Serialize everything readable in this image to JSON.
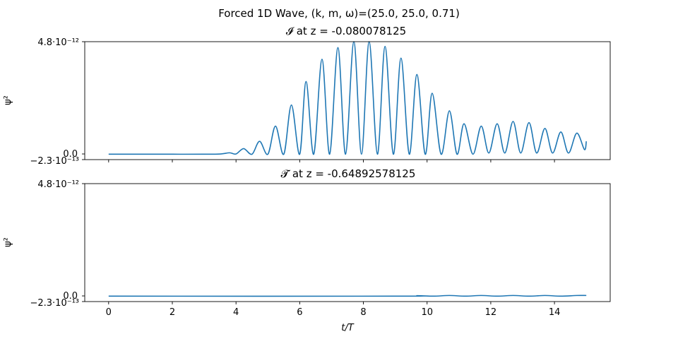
{
  "chart_data": {
    "type": "line",
    "title": "Forced 1D Wave, (k, m, ω)=(25.0, 25.0, 0.71)",
    "xlabel": "t/T",
    "line_color": "#1f77b4",
    "panels": [
      {
        "title": "𝓘 at z = -0.080078125",
        "ylabel": "ψ²",
        "ylim": [
          -2.3e-13,
          4.8e-12
        ],
        "ytick_labels": [
          "4.8·10⁻¹²",
          "0.0",
          "−2.3·10⁻¹³"
        ],
        "xlim": [
          -0.75,
          15.75
        ],
        "x": [
          0,
          1,
          2,
          3,
          3.5,
          3.8,
          4.0,
          4.24,
          4.5,
          4.74,
          5.0,
          5.24,
          5.5,
          5.74,
          6.0,
          6.2,
          6.44,
          6.7,
          6.94,
          7.2,
          7.44,
          7.7,
          7.94,
          8.18,
          8.44,
          8.68,
          8.94,
          9.18,
          9.44,
          9.68,
          9.94,
          10.16,
          10.44,
          10.7,
          10.94,
          11.16,
          11.44,
          11.7,
          11.94,
          12.2,
          12.44,
          12.7,
          12.94,
          13.2,
          13.44,
          13.7,
          13.94,
          14.2,
          14.44,
          14.7,
          14.94,
          15.0
        ],
        "y": [
          0,
          0,
          0,
          0,
          1e-14,
          6e-14,
          1e-14,
          2.4e-13,
          0.0,
          5.5e-13,
          0.0,
          1.2e-12,
          0.0,
          2.1e-12,
          0.0,
          3.1e-12,
          0.0,
          4.05e-12,
          0.0,
          4.55e-12,
          0.0,
          4.8e-12,
          0.0,
          4.8e-12,
          0.0,
          4.6e-12,
          0.0,
          4.1e-12,
          0.0,
          3.4e-12,
          0.0,
          2.6e-12,
          0.0,
          1.85e-12,
          0.0,
          1.3e-12,
          0.0,
          1.2e-12,
          5e-14,
          1.3e-12,
          5e-14,
          1.4e-12,
          5e-14,
          1.35e-12,
          5e-14,
          1.1e-12,
          5e-14,
          9.5e-13,
          5e-14,
          9e-13,
          2e-13,
          5.5e-13
        ]
      },
      {
        "title": "𝓣 at z = -0.64892578125",
        "ylabel": "ψ²",
        "ylim": [
          -2.3e-13,
          4.8e-12
        ],
        "ytick_labels": [
          "4.8·10⁻¹²",
          "0.0",
          "−2.3·10⁻¹³"
        ],
        "xlim": [
          -0.75,
          15.75
        ],
        "x": [
          0,
          9,
          9.7,
          10.2,
          10.7,
          11.2,
          11.7,
          12.2,
          12.7,
          13.2,
          13.7,
          14.2,
          14.7,
          15.0
        ],
        "y": [
          0,
          0,
          2e-14,
          0.0,
          3e-14,
          0.0,
          3e-14,
          0.0,
          3e-14,
          0.0,
          3e-14,
          0.0,
          3e-14,
          3e-14
        ]
      }
    ],
    "xticks": [
      0,
      2,
      4,
      6,
      8,
      10,
      12,
      14
    ],
    "xtick_labels": [
      "0",
      "2",
      "4",
      "6",
      "8",
      "10",
      "12",
      "14"
    ]
  }
}
